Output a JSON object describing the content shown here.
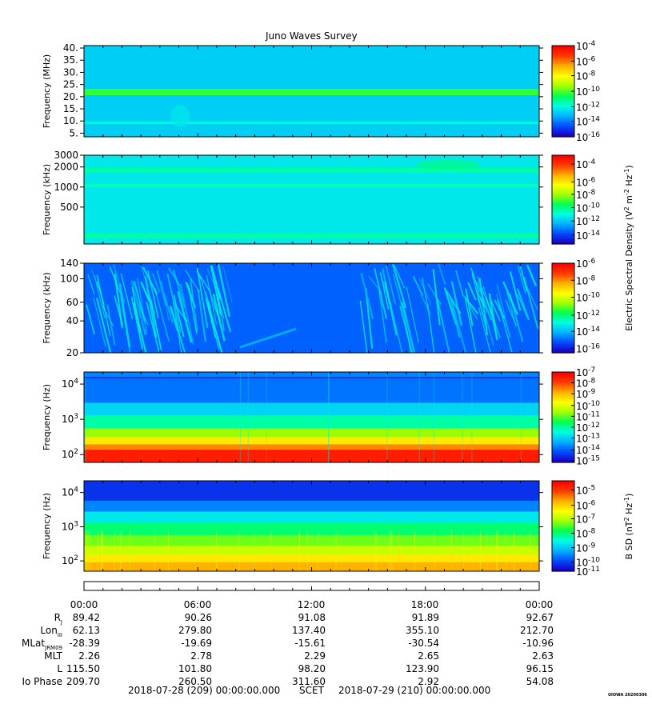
{
  "chart_data": {
    "type": "heatmap",
    "title": "Juno Waves Survey",
    "colormap": [
      "#1a00c8",
      "#0050ff",
      "#00b4ff",
      "#00ffe0",
      "#00ff50",
      "#a0ff00",
      "#ffff00",
      "#ffb400",
      "#ff4000",
      "#ff0000"
    ],
    "panels": [
      {
        "id": "hf",
        "ylabel": "Frequency (MHz)",
        "ylim": [
          3.5,
          41
        ],
        "yscale": "linear",
        "yticks": [
          {
            "v": 40,
            "label": "40."
          },
          {
            "v": 35,
            "label": "35."
          },
          {
            "v": 30,
            "label": "30."
          },
          {
            "v": 25,
            "label": "25."
          },
          {
            "v": 20,
            "label": "20."
          },
          {
            "v": 15,
            "label": "15."
          },
          {
            "v": 10,
            "label": "10."
          },
          {
            "v": 5,
            "label": "5."
          }
        ],
        "colorbar": {
          "ticks": [
            {
              "exp": "-4",
              "frac": 0.0
            },
            {
              "exp": "-6",
              "frac": 0.17
            },
            {
              "exp": "-8",
              "frac": 0.33
            },
            {
              "exp": "-10",
              "frac": 0.5
            },
            {
              "exp": "-12",
              "frac": 0.67
            },
            {
              "exp": "-14",
              "frac": 0.83
            },
            {
              "exp": "-16",
              "frac": 1.0
            }
          ]
        }
      },
      {
        "id": "mf",
        "ylabel": "Frequency (kHz)",
        "ylim": [
          140,
          3000
        ],
        "yscale": "log",
        "yticks": [
          {
            "v": 3000,
            "label": "3000"
          },
          {
            "v": 2000,
            "label": "2000"
          },
          {
            "v": 1000,
            "label": "1000"
          },
          {
            "v": 500,
            "label": "500"
          }
        ],
        "colorbar": {
          "ticks": [
            {
              "exp": "-4",
              "frac": 0.1
            },
            {
              "exp": "-6",
              "frac": 0.3
            },
            {
              "exp": "-8",
              "frac": 0.44
            },
            {
              "exp": "-10",
              "frac": 0.59
            },
            {
              "exp": "-12",
              "frac": 0.74
            },
            {
              "exp": "-14",
              "frac": 0.9
            }
          ]
        }
      },
      {
        "id": "lf",
        "ylabel": "Frequency (kHz)",
        "ylim": [
          20,
          140
        ],
        "yscale": "log",
        "yticks": [
          {
            "v": 140,
            "label": "140"
          },
          {
            "v": 100,
            "label": "100"
          },
          {
            "v": 60,
            "label": "60"
          },
          {
            "v": 40,
            "label": "40"
          },
          {
            "v": 20,
            "label": "20"
          }
        ],
        "colorbar": {
          "ticks": [
            {
              "exp": "-6",
              "frac": 0.0
            },
            {
              "exp": "-8",
              "frac": 0.19
            },
            {
              "exp": "-10",
              "frac": 0.38
            },
            {
              "exp": "-12",
              "frac": 0.58
            },
            {
              "exp": "-14",
              "frac": 0.76
            },
            {
              "exp": "-16",
              "frac": 0.95
            }
          ]
        }
      },
      {
        "id": "elf",
        "ylabel": "Frequency (Hz)",
        "ylim": [
          60,
          22000
        ],
        "yscale": "log",
        "yticks": [
          {
            "v": 10000,
            "label": "10",
            "exp": "4"
          },
          {
            "v": 1000,
            "label": "10",
            "exp": "3"
          },
          {
            "v": 100,
            "label": "10",
            "exp": "2"
          }
        ],
        "colorbar": {
          "ticks": [
            {
              "exp": "-7",
              "frac": 0.0
            },
            {
              "exp": "-8",
              "frac": 0.12
            },
            {
              "exp": "-9",
              "frac": 0.24
            },
            {
              "exp": "-10",
              "frac": 0.37
            },
            {
              "exp": "-11",
              "frac": 0.49
            },
            {
              "exp": "-12",
              "frac": 0.61
            },
            {
              "exp": "-13",
              "frac": 0.73
            },
            {
              "exp": "-14",
              "frac": 0.86
            },
            {
              "exp": "-15",
              "frac": 0.98
            }
          ]
        }
      },
      {
        "id": "mag",
        "ylabel": "Frequency (Hz)",
        "ylim": [
          50,
          22000
        ],
        "yscale": "log",
        "yticks": [
          {
            "v": 10000,
            "label": "10",
            "exp": "4"
          },
          {
            "v": 1000,
            "label": "10",
            "exp": "3"
          },
          {
            "v": 100,
            "label": "10",
            "exp": "2"
          }
        ],
        "colorbar": {
          "ticks": [
            {
              "exp": "-5",
              "frac": 0.1
            },
            {
              "exp": "-6",
              "frac": 0.27
            },
            {
              "exp": "-7",
              "frac": 0.42
            },
            {
              "exp": "-8",
              "frac": 0.58
            },
            {
              "exp": "-9",
              "frac": 0.74
            },
            {
              "exp": "-10",
              "frac": 0.9
            },
            {
              "exp": "-11",
              "frac": 1.0
            }
          ]
        }
      }
    ],
    "cb_label_electric": "Electric Spectral Density (V",
    "cb_label_magnetic": "B SD (nT",
    "cb_tick_base": "10",
    "time_ticks": [
      "00:00",
      "06:00",
      "12:00",
      "18:00",
      "00:00"
    ],
    "ephemeris": [
      {
        "name": "R",
        "sub": "J",
        "values": [
          "89.42",
          "90.26",
          "91.08",
          "91.89",
          "92.67"
        ]
      },
      {
        "name": "Lon",
        "sub": "III",
        "values": [
          "62.13",
          "279.80",
          "137.40",
          "355.10",
          "212.70"
        ]
      },
      {
        "name": "MLat",
        "sub": "JRM09",
        "values": [
          "-28.39",
          "-19.69",
          "-15.61",
          "-30.54",
          "-10.96"
        ]
      },
      {
        "name": "MLT",
        "sub": "",
        "values": [
          "2.26",
          "2.78",
          "2.29",
          "2.65",
          "2.63"
        ]
      },
      {
        "name": "L",
        "sub": "",
        "values": [
          "115.50",
          "101.80",
          "98.20",
          "123.90",
          "96.15"
        ]
      },
      {
        "name": "Io Phase",
        "sub": "",
        "values": [
          "209.70",
          "260.50",
          "311.60",
          "2.92",
          "54.08"
        ]
      }
    ],
    "footer": {
      "start": "2018-07-28 (209) 00:00:00.000",
      "scet": "SCET",
      "end": "2018-07-29 (210) 00:00:00.000",
      "stamp": "UIOWA 20200306"
    }
  }
}
